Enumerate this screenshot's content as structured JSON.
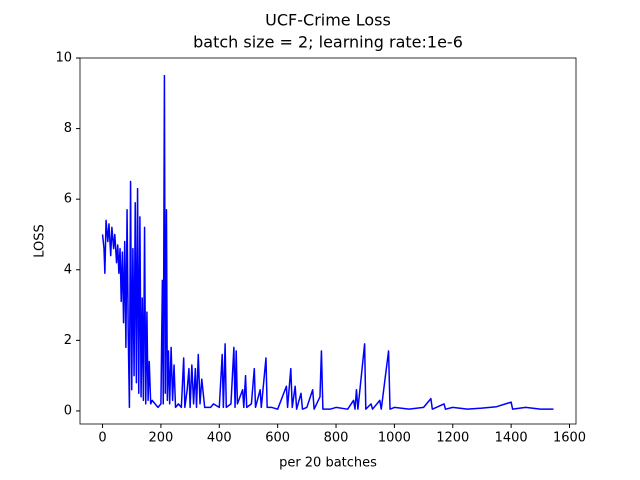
{
  "chart_data": {
    "type": "line",
    "title": "UCF-Crime Loss",
    "subtitle": "batch size = 2; learning rate:1e-6",
    "x_label": "per 20 batches",
    "y_label": "LOSS",
    "xlim": [
      -77.25,
      1622.25
    ],
    "xticks": [
      0,
      200,
      400,
      600,
      800,
      1000,
      1200,
      1400,
      1600
    ],
    "ylim": [
      -0.37,
      10
    ],
    "yticks": [
      0,
      2,
      4,
      6,
      8,
      10
    ],
    "grid": false,
    "x": [
      0,
      5,
      8,
      12,
      18,
      22,
      28,
      32,
      38,
      42,
      48,
      52,
      56,
      60,
      64,
      68,
      72,
      76,
      80,
      84,
      88,
      92,
      96,
      100,
      104,
      108,
      112,
      116,
      120,
      124,
      128,
      132,
      136,
      140,
      144,
      148,
      152,
      156,
      160,
      165,
      170,
      180,
      190,
      200,
      205,
      208,
      212,
      215,
      219,
      222,
      226,
      230,
      235,
      240,
      245,
      250,
      260,
      270,
      278,
      282,
      290,
      296,
      300,
      306,
      312,
      318,
      322,
      328,
      334,
      340,
      350,
      370,
      380,
      400,
      410,
      414,
      420,
      424,
      440,
      450,
      454,
      458,
      462,
      480,
      484,
      490,
      494,
      510,
      520,
      524,
      540,
      544,
      560,
      564,
      580,
      600,
      630,
      634,
      645,
      650,
      660,
      665,
      680,
      685,
      700,
      720,
      725,
      745,
      750,
      755,
      780,
      800,
      840,
      860,
      865,
      870,
      875,
      898,
      902,
      920,
      925,
      950,
      955,
      980,
      985,
      1000,
      1050,
      1100,
      1125,
      1130,
      1170,
      1175,
      1200,
      1250,
      1300,
      1350,
      1400,
      1405,
      1450,
      1500,
      1545
    ],
    "series": [
      {
        "name": "loss",
        "color": "#0000ff",
        "values": [
          5.0,
          4.6,
          3.9,
          5.4,
          4.8,
          5.3,
          4.4,
          5.2,
          4.6,
          5.0,
          4.2,
          4.7,
          3.9,
          4.6,
          3.1,
          4.5,
          2.5,
          4.8,
          1.8,
          5.7,
          2.2,
          0.1,
          6.5,
          0.6,
          4.6,
          1.0,
          5.9,
          0.8,
          6.3,
          0.5,
          5.5,
          0.4,
          3.2,
          0.3,
          5.2,
          0.2,
          2.8,
          0.3,
          1.4,
          0.2,
          0.3,
          0.2,
          0.1,
          0.2,
          3.7,
          0.2,
          9.5,
          0.5,
          5.7,
          0.3,
          1.7,
          0.2,
          1.8,
          0.3,
          1.3,
          0.1,
          0.2,
          0.1,
          1.5,
          0.1,
          0.6,
          1.2,
          0.1,
          1.3,
          0.2,
          1.2,
          0.1,
          1.6,
          0.2,
          0.9,
          0.1,
          0.1,
          0.2,
          0.1,
          1.6,
          0.1,
          1.9,
          0.1,
          0.2,
          1.8,
          0.1,
          1.7,
          0.2,
          0.6,
          0.1,
          1.0,
          0.1,
          0.2,
          1.2,
          0.1,
          0.6,
          0.1,
          1.5,
          0.1,
          0.1,
          0.05,
          0.7,
          0.1,
          1.2,
          0.1,
          0.7,
          0.05,
          0.5,
          0.05,
          0.1,
          0.6,
          0.05,
          0.4,
          1.7,
          0.05,
          0.05,
          0.1,
          0.05,
          0.3,
          0.05,
          0.6,
          0.05,
          1.9,
          0.05,
          0.2,
          0.05,
          0.3,
          0.05,
          1.7,
          0.05,
          0.1,
          0.05,
          0.1,
          0.35,
          0.05,
          0.2,
          0.05,
          0.1,
          0.05,
          0.08,
          0.12,
          0.25,
          0.05,
          0.1,
          0.05,
          0.05
        ]
      }
    ]
  }
}
